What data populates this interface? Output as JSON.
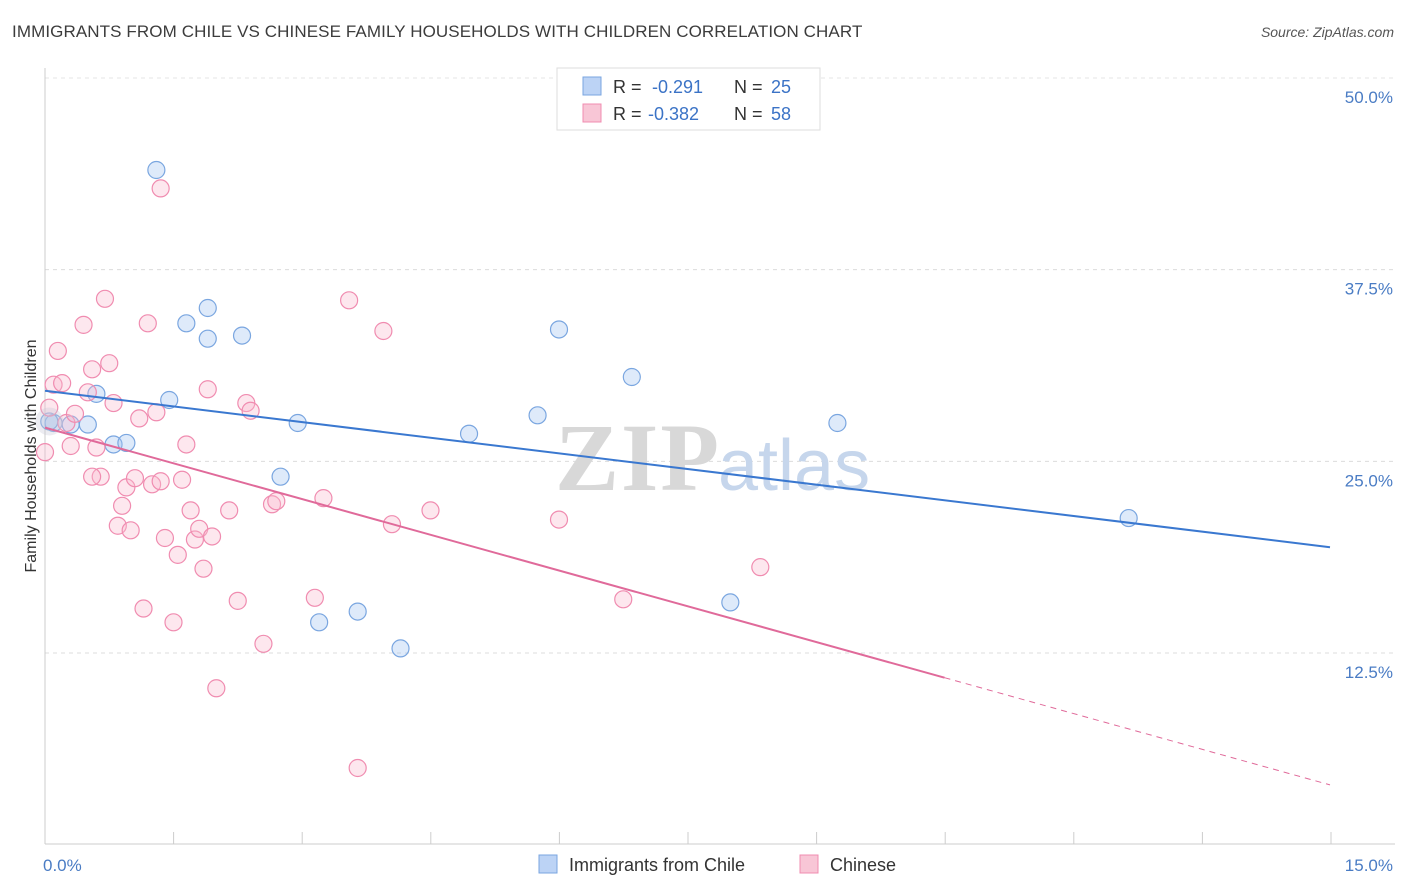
{
  "chart_data": {
    "type": "scatter",
    "title": "IMMIGRANTS FROM CHILE VS CHINESE FAMILY HOUSEHOLDS WITH CHILDREN CORRELATION CHART",
    "source": "Source: ZipAtlas.com",
    "ylabel": "Family Households with Children",
    "xlim": [
      0,
      15
    ],
    "ylim": [
      0,
      52
    ],
    "x_tick_labels": [
      "0.0%",
      "15.0%"
    ],
    "y_ticks": [
      12.5,
      25.0,
      37.5,
      50.0
    ],
    "y_tick_labels": [
      "12.5%",
      "25.0%",
      "37.5%",
      "50.0%"
    ],
    "watermark": {
      "zip": "ZIP",
      "atlas": "atlas"
    },
    "legend": [
      {
        "r_label": "R =",
        "r_value": "-0.291",
        "n_label": "N =",
        "n_value": "25"
      },
      {
        "r_label": "R =",
        "r_value": "-0.382",
        "n_label": "N =",
        "n_value": "58"
      }
    ],
    "series": [
      {
        "name": "Immigrants from Chile",
        "color": "#7aa6e0",
        "fill": "rgba(160,195,240,0.35)",
        "line_color": "#3a78d0",
        "trend": {
          "x0": 0.0,
          "y0": 29.6,
          "x1": 15.0,
          "y1": 19.4,
          "solid_until": 15.0
        },
        "points": [
          [
            0.1,
            27.5
          ],
          [
            0.3,
            27.4
          ],
          [
            0.5,
            27.4
          ],
          [
            0.6,
            29.4
          ],
          [
            0.8,
            26.1
          ],
          [
            1.3,
            44.0
          ],
          [
            1.45,
            29.0
          ],
          [
            1.9,
            33.0
          ],
          [
            2.3,
            33.2
          ],
          [
            1.65,
            34.0
          ],
          [
            1.9,
            35.0
          ],
          [
            0.95,
            26.2
          ],
          [
            2.75,
            24.0
          ],
          [
            2.95,
            27.5
          ],
          [
            3.2,
            14.5
          ],
          [
            3.65,
            15.2
          ],
          [
            4.15,
            12.8
          ],
          [
            4.95,
            26.8
          ],
          [
            5.75,
            28.0
          ],
          [
            6.0,
            33.6
          ],
          [
            6.85,
            30.5
          ],
          [
            8.0,
            15.8
          ],
          [
            9.25,
            27.5
          ],
          [
            12.65,
            21.3
          ],
          [
            0.05,
            27.6
          ]
        ]
      },
      {
        "name": "Chinese",
        "color": "#f08cb0",
        "fill": "rgba(248,185,205,0.35)",
        "line_color": "#e06a9a",
        "trend": {
          "x0": 0.0,
          "y0": 27.2,
          "x1": 15.0,
          "y1": 3.9,
          "solid_until": 10.5
        },
        "points": [
          [
            0.0,
            25.6
          ],
          [
            0.05,
            28.5
          ],
          [
            0.1,
            30.0
          ],
          [
            0.15,
            32.2
          ],
          [
            0.2,
            30.1
          ],
          [
            0.25,
            27.5
          ],
          [
            0.3,
            26.0
          ],
          [
            0.35,
            28.1
          ],
          [
            0.45,
            33.9
          ],
          [
            0.5,
            29.5
          ],
          [
            0.55,
            31.0
          ],
          [
            0.6,
            25.9
          ],
          [
            0.65,
            24.0
          ],
          [
            0.7,
            35.6
          ],
          [
            0.75,
            31.4
          ],
          [
            0.8,
            28.8
          ],
          [
            0.85,
            20.8
          ],
          [
            0.9,
            22.1
          ],
          [
            0.95,
            23.3
          ],
          [
            1.0,
            20.5
          ],
          [
            1.05,
            23.9
          ],
          [
            1.1,
            27.8
          ],
          [
            1.15,
            15.4
          ],
          [
            1.2,
            34.0
          ],
          [
            1.25,
            23.5
          ],
          [
            1.3,
            28.2
          ],
          [
            1.35,
            23.7
          ],
          [
            1.4,
            20.0
          ],
          [
            1.5,
            14.5
          ],
          [
            1.55,
            18.9
          ],
          [
            1.6,
            23.8
          ],
          [
            1.65,
            26.1
          ],
          [
            1.7,
            21.8
          ],
          [
            1.75,
            19.9
          ],
          [
            1.8,
            20.6
          ],
          [
            1.85,
            18.0
          ],
          [
            1.9,
            29.7
          ],
          [
            1.95,
            20.1
          ],
          [
            2.0,
            10.2
          ],
          [
            2.15,
            21.8
          ],
          [
            2.25,
            15.9
          ],
          [
            2.35,
            28.8
          ],
          [
            2.4,
            28.3
          ],
          [
            2.55,
            13.1
          ],
          [
            2.65,
            22.2
          ],
          [
            3.15,
            16.1
          ],
          [
            3.25,
            22.6
          ],
          [
            3.55,
            35.5
          ],
          [
            3.65,
            5.0
          ],
          [
            3.95,
            33.5
          ],
          [
            4.05,
            20.9
          ],
          [
            4.5,
            21.8
          ],
          [
            6.0,
            21.2
          ],
          [
            6.75,
            16.0
          ],
          [
            8.35,
            18.1
          ],
          [
            1.35,
            42.8
          ],
          [
            0.55,
            24.0
          ],
          [
            2.7,
            22.4
          ]
        ]
      }
    ],
    "bottom_legend": [
      "Immigrants from Chile",
      "Chinese"
    ]
  }
}
